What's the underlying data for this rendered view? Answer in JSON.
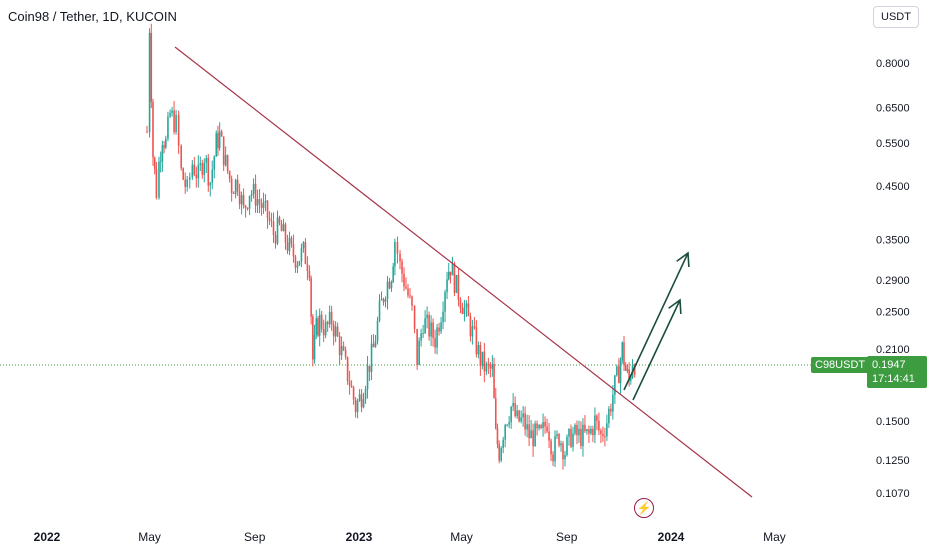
{
  "header": {
    "title": "Coin98 / Tether, 1D, KUCOIN",
    "currency": "USDT"
  },
  "price": {
    "symbol": "C98USDT",
    "last": "0.1947",
    "countdown": "17:14:41"
  },
  "colors": {
    "up": "#26a69a",
    "down": "#ef5350",
    "trendline": "#a5354a",
    "arrow": "#1b4d3e",
    "price_line": "#3d9c40"
  },
  "chart_data": {
    "type": "line",
    "scale": "log",
    "y_ticks": [
      "0.8000",
      "0.6500",
      "0.5500",
      "0.4500",
      "0.3500",
      "0.2900",
      "0.2500",
      "0.2100",
      "0.1500",
      "0.1250",
      "0.1070"
    ],
    "x_ticks": [
      "2022",
      "May",
      "Sep",
      "2023",
      "May",
      "Sep",
      "2024",
      "May"
    ],
    "x_ticks_bold": [
      "2022",
      "2023",
      "2024"
    ],
    "series": [
      {
        "values": [
          [
            "2022-04-28",
            0.58
          ],
          [
            "2022-05-01",
            0.95
          ],
          [
            "2022-05-05",
            0.52
          ],
          [
            "2022-05-09",
            0.44
          ],
          [
            "2022-05-12",
            0.5
          ],
          [
            "2022-05-16",
            0.57
          ],
          [
            "2022-05-20",
            0.55
          ],
          [
            "2022-05-25",
            0.63
          ],
          [
            "2022-06-01",
            0.6
          ],
          [
            "2022-06-07",
            0.48
          ],
          [
            "2022-06-14",
            0.44
          ],
          [
            "2022-06-20",
            0.5
          ],
          [
            "2022-06-27",
            0.47
          ],
          [
            "2022-07-04",
            0.52
          ],
          [
            "2022-07-11",
            0.46
          ],
          [
            "2022-07-18",
            0.55
          ],
          [
            "2022-07-22",
            0.57
          ],
          [
            "2022-07-29",
            0.5
          ],
          [
            "2022-08-05",
            0.45
          ],
          [
            "2022-08-12",
            0.46
          ],
          [
            "2022-08-19",
            0.4
          ],
          [
            "2022-08-26",
            0.44
          ],
          [
            "2022-09-02",
            0.43
          ],
          [
            "2022-09-09",
            0.41
          ],
          [
            "2022-09-16",
            0.39
          ],
          [
            "2022-09-23",
            0.36
          ],
          [
            "2022-09-30",
            0.37
          ],
          [
            "2022-10-07",
            0.35
          ],
          [
            "2022-10-14",
            0.33
          ],
          [
            "2022-10-21",
            0.32
          ],
          [
            "2022-10-28",
            0.33
          ],
          [
            "2022-11-04",
            0.31
          ],
          [
            "2022-11-08",
            0.2
          ],
          [
            "2022-11-12",
            0.23
          ],
          [
            "2022-11-16",
            0.24
          ],
          [
            "2022-11-23",
            0.23
          ],
          [
            "2022-11-30",
            0.24
          ],
          [
            "2022-12-07",
            0.22
          ],
          [
            "2022-12-14",
            0.2
          ],
          [
            "2022-12-21",
            0.18
          ],
          [
            "2022-12-28",
            0.16
          ],
          [
            "2023-01-04",
            0.17
          ],
          [
            "2023-01-11",
            0.19
          ],
          [
            "2023-01-18",
            0.21
          ],
          [
            "2023-01-25",
            0.25
          ],
          [
            "2023-02-01",
            0.28
          ],
          [
            "2023-02-08",
            0.3
          ],
          [
            "2023-02-12",
            0.35
          ],
          [
            "2023-02-18",
            0.31
          ],
          [
            "2023-02-25",
            0.28
          ],
          [
            "2023-03-04",
            0.25
          ],
          [
            "2023-03-10",
            0.2
          ],
          [
            "2023-03-17",
            0.24
          ],
          [
            "2023-03-24",
            0.23
          ],
          [
            "2023-03-31",
            0.22
          ],
          [
            "2023-04-07",
            0.25
          ],
          [
            "2023-04-14",
            0.3
          ],
          [
            "2023-04-18",
            0.31
          ],
          [
            "2023-04-25",
            0.28
          ],
          [
            "2023-05-02",
            0.26
          ],
          [
            "2023-05-09",
            0.24
          ],
          [
            "2023-05-16",
            0.22
          ],
          [
            "2023-05-23",
            0.2
          ],
          [
            "2023-05-30",
            0.19
          ],
          [
            "2023-06-06",
            0.19
          ],
          [
            "2023-06-10",
            0.14
          ],
          [
            "2023-06-14",
            0.13
          ],
          [
            "2023-06-21",
            0.15
          ],
          [
            "2023-06-28",
            0.16
          ],
          [
            "2023-07-05",
            0.15
          ],
          [
            "2023-07-12",
            0.15
          ],
          [
            "2023-07-19",
            0.14
          ],
          [
            "2023-07-26",
            0.14
          ],
          [
            "2023-08-02",
            0.14
          ],
          [
            "2023-08-09",
            0.15
          ],
          [
            "2023-08-16",
            0.13
          ],
          [
            "2023-08-23",
            0.14
          ],
          [
            "2023-08-30",
            0.13
          ],
          [
            "2023-09-06",
            0.14
          ],
          [
            "2023-09-13",
            0.14
          ],
          [
            "2023-09-20",
            0.14
          ],
          [
            "2023-09-27",
            0.14
          ],
          [
            "2023-10-04",
            0.15
          ],
          [
            "2023-10-11",
            0.14
          ],
          [
            "2023-10-18",
            0.15
          ],
          [
            "2023-10-25",
            0.17
          ],
          [
            "2023-11-01",
            0.19
          ],
          [
            "2023-11-05",
            0.21
          ],
          [
            "2023-11-09",
            0.19
          ],
          [
            "2023-11-13",
            0.18
          ],
          [
            "2023-11-17",
            0.2
          ],
          [
            "2023-11-22",
            0.1947
          ]
        ]
      }
    ]
  }
}
